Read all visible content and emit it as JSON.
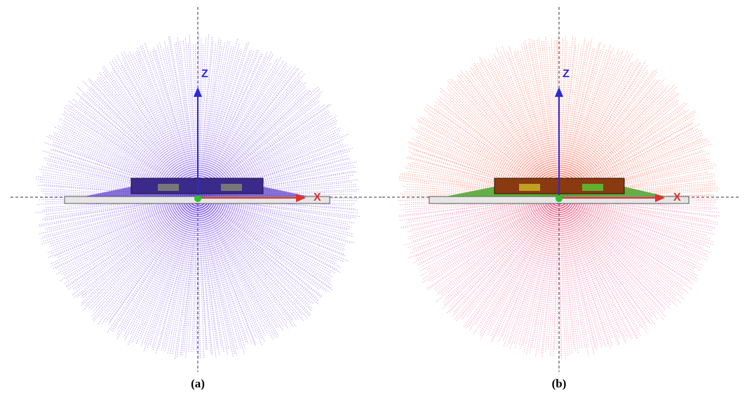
{
  "figure": {
    "panels": [
      {
        "label": "(a)",
        "z_axis": "Z",
        "x_axis": "X"
      },
      {
        "label": "(b)",
        "z_axis": "Z",
        "x_axis": "X"
      }
    ]
  }
}
